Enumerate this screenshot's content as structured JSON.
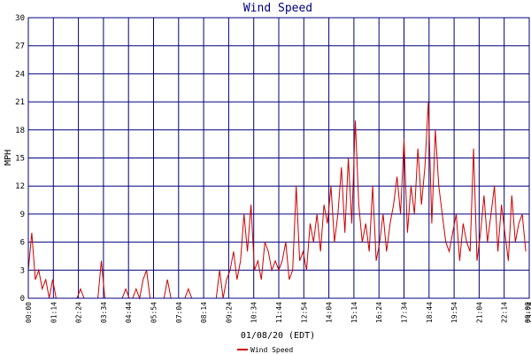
{
  "chart_data": {
    "type": "line",
    "title": "Wind Speed",
    "xlabel": "01/08/20 (EDT)",
    "ylabel": "MPH",
    "ylim": [
      0,
      30
    ],
    "yticks": [
      0,
      3,
      6,
      9,
      12,
      15,
      18,
      21,
      24,
      27,
      30
    ],
    "xlim": [
      "00:00",
      "24:00"
    ],
    "xtick_labels": [
      "00:00",
      "01:14",
      "02:24",
      "03:34",
      "04:44",
      "05:54",
      "07:04",
      "08:14",
      "09:24",
      "10:34",
      "11:44",
      "12:54",
      "14:04",
      "15:14",
      "16:24",
      "17:34",
      "18:44",
      "19:54",
      "21:04",
      "22:14",
      "23:24",
      "00:00"
    ],
    "grid": true,
    "legend": "bottom-center",
    "colors": {
      "series": "#cc0000",
      "grid": "#000080",
      "title": "#000080"
    },
    "series": [
      {
        "name": "Wind Speed",
        "x": [
          "00:00",
          "00:10",
          "00:20",
          "00:30",
          "00:40",
          "00:50",
          "01:00",
          "01:10",
          "01:20",
          "01:30",
          "01:40",
          "01:50",
          "02:00",
          "02:10",
          "02:20",
          "02:30",
          "02:40",
          "02:50",
          "03:00",
          "03:10",
          "03:20",
          "03:30",
          "03:40",
          "03:50",
          "04:00",
          "04:10",
          "04:20",
          "04:30",
          "04:40",
          "04:50",
          "05:00",
          "05:10",
          "05:20",
          "05:30",
          "05:40",
          "05:50",
          "06:00",
          "06:10",
          "06:20",
          "06:30",
          "06:40",
          "06:50",
          "07:00",
          "07:10",
          "07:20",
          "07:30",
          "07:40",
          "07:50",
          "08:00",
          "08:10",
          "08:20",
          "08:30",
          "08:40",
          "08:50",
          "09:00",
          "09:10",
          "09:20",
          "09:30",
          "09:40",
          "09:50",
          "10:00",
          "10:10",
          "10:20",
          "10:30",
          "10:40",
          "10:50",
          "11:00",
          "11:10",
          "11:20",
          "11:30",
          "11:40",
          "11:50",
          "12:00",
          "12:10",
          "12:20",
          "12:30",
          "12:40",
          "12:50",
          "13:00",
          "13:10",
          "13:20",
          "13:30",
          "13:40",
          "13:50",
          "14:00",
          "14:10",
          "14:20",
          "14:30",
          "14:40",
          "14:50",
          "15:00",
          "15:10",
          "15:20",
          "15:30",
          "15:40",
          "15:50",
          "16:00",
          "16:10",
          "16:20",
          "16:30",
          "16:40",
          "16:50",
          "17:00",
          "17:10",
          "17:20",
          "17:30",
          "17:40",
          "17:50",
          "18:00",
          "18:10",
          "18:20",
          "18:30",
          "18:40",
          "18:50",
          "19:00",
          "19:10",
          "19:20",
          "19:30",
          "19:40",
          "19:50",
          "20:00",
          "20:10",
          "20:20",
          "20:30",
          "20:40",
          "20:50",
          "21:00",
          "21:10",
          "21:20",
          "21:30",
          "21:40",
          "21:50",
          "22:00",
          "22:10",
          "22:20",
          "22:30",
          "22:40",
          "22:50",
          "23:00",
          "23:10",
          "23:20",
          "23:30",
          "23:40",
          "23:50"
        ],
        "y": [
          3,
          7,
          2,
          3,
          1,
          2,
          0,
          2,
          0,
          0,
          0,
          0,
          0,
          0,
          0,
          1,
          0,
          0,
          0,
          0,
          0,
          4,
          0,
          0,
          0,
          0,
          0,
          0,
          1,
          0,
          0,
          1,
          0,
          2,
          3,
          0,
          0,
          0,
          0,
          0,
          2,
          0,
          0,
          0,
          0,
          0,
          1,
          0,
          0,
          0,
          0,
          0,
          0,
          0,
          0,
          3,
          0,
          2,
          3,
          5,
          2,
          4,
          9,
          5,
          10,
          3,
          4,
          2,
          6,
          5,
          3,
          4,
          3,
          4,
          6,
          2,
          3,
          12,
          4,
          5,
          3,
          8,
          6,
          9,
          5,
          10,
          8,
          12,
          6,
          9,
          14,
          7,
          15,
          8,
          19,
          10,
          6,
          8,
          5,
          12,
          4,
          6,
          9,
          5,
          8,
          10,
          13,
          9,
          17,
          7,
          12,
          9,
          16,
          10,
          14,
          21,
          8,
          18,
          12,
          9,
          6,
          5,
          7,
          9,
          4,
          8,
          6,
          5,
          16,
          4,
          7,
          11,
          6,
          9,
          12,
          5,
          10,
          7,
          4,
          11,
          6,
          8,
          9,
          5
        ]
      }
    ]
  }
}
